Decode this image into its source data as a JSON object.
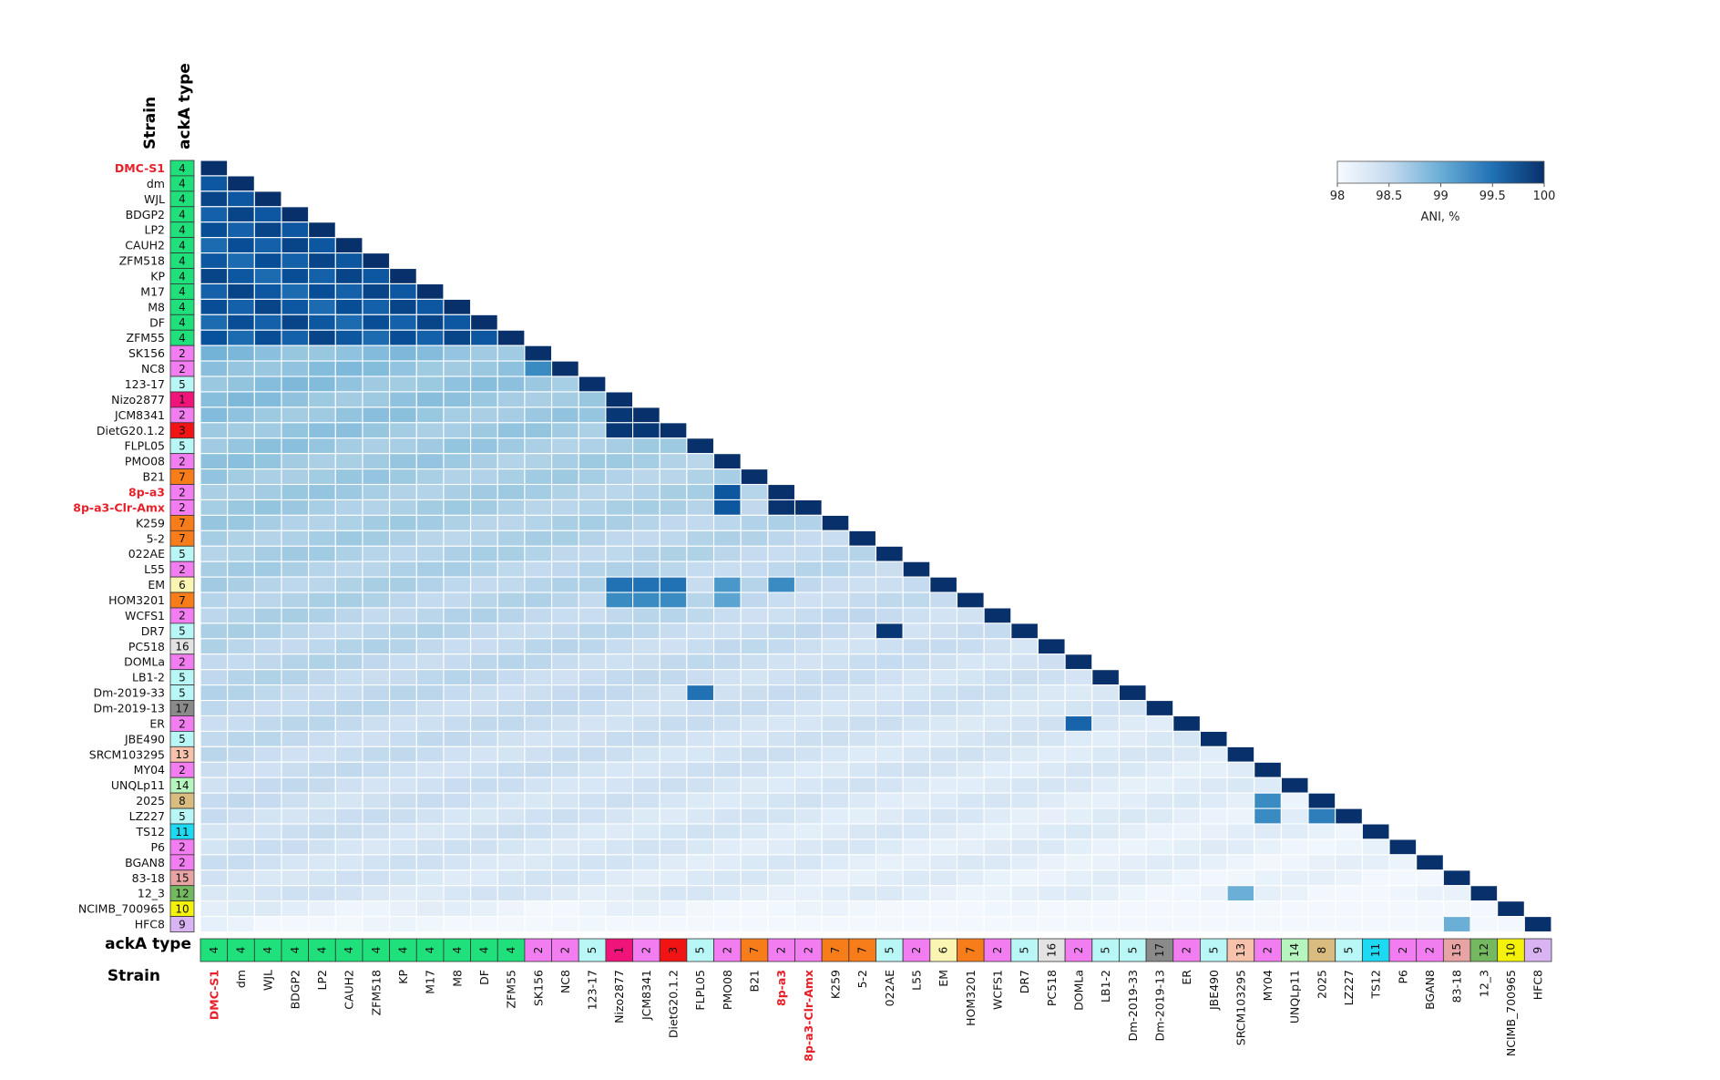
{
  "chart_data": {
    "type": "heatmap",
    "title": "",
    "row_header": "Strain",
    "type_header": "ackA type",
    "bottom_type_header": "ackA type",
    "bottom_strain_header": "Strain",
    "highlight_color": "#e8202a",
    "strains": [
      "DMC-S1",
      "dm",
      "WJL",
      "BDGP2",
      "LP2",
      "CAUH2",
      "ZFM518",
      "KP",
      "M17",
      "M8",
      "DF",
      "ZFM55",
      "SK156",
      "NC8",
      "123-17",
      "Nizo2877",
      "JCM8341",
      "DietG20.1.2",
      "FLPL05",
      "PMO08",
      "B21",
      "8p-a3",
      "8p-a3-Clr-Amx",
      "K259",
      "5-2",
      "022AE",
      "L55",
      "EM",
      "HOM3201",
      "WCFS1",
      "DR7",
      "PC518",
      "DOMLa",
      "LB1-2",
      "Dm-2019-33",
      "Dm-2019-13",
      "ER",
      "JBE490",
      "SRCM103295",
      "MY04",
      "UNQLp11",
      "2025",
      "LZ227",
      "TS12",
      "P6",
      "BGAN8",
      "83-18",
      "12_3",
      "NCIMB_700965",
      "HFC8"
    ],
    "acka_types": [
      "4",
      "4",
      "4",
      "4",
      "4",
      "4",
      "4",
      "4",
      "4",
      "4",
      "4",
      "4",
      "2",
      "2",
      "5",
      "1",
      "2",
      "3",
      "5",
      "2",
      "7",
      "2",
      "2",
      "7",
      "7",
      "5",
      "2",
      "6",
      "7",
      "2",
      "5",
      "16",
      "2",
      "5",
      "5",
      "17",
      "2",
      "5",
      "13",
      "2",
      "14",
      "8",
      "5",
      "11",
      "2",
      "2",
      "15",
      "12",
      "10",
      "9"
    ],
    "highlighted_strains": [
      "DMC-S1",
      "8p-a3",
      "8p-a3-Clr-Amx"
    ],
    "type_colors": {
      "1": "#f0147a",
      "2": "#f27df0",
      "3": "#f21414",
      "4": "#1fe07a",
      "5": "#b8f7f5",
      "6": "#fbf5b4",
      "7": "#f77d1a",
      "8": "#d8bc80",
      "9": "#d9b3f2",
      "10": "#f4f20a",
      "11": "#1ed9f2",
      "12": "#74b960",
      "13": "#f7c2ac",
      "14": "#b6f5bd",
      "15": "#e8a4a4",
      "16": "#e3e3e3",
      "17": "#8a8a8a"
    },
    "colorbar": {
      "label": "ANI, %",
      "ticks": [
        98,
        98.5,
        99,
        99.5,
        100
      ],
      "range": [
        98,
        100
      ],
      "color_low": "#f7fbff",
      "color_high": "#08306b"
    },
    "ani_model": {
      "diagonal": 100,
      "same_group_pairs_ani": 99.9,
      "high_similarity_pairs": [
        [
          "DMC-S1",
          "ZFM55",
          99.75
        ],
        [
          "SK156",
          "NC8",
          99.3
        ],
        [
          "Nizo2877",
          "JCM8341",
          99.95
        ],
        [
          "Nizo2877",
          "DietG20.1.2",
          99.95
        ],
        [
          "JCM8341",
          "DietG20.1.2",
          99.95
        ],
        [
          "8p-a3",
          "8p-a3-Clr-Amx",
          99.98
        ],
        [
          "PMO08",
          "8p-a3",
          99.7
        ],
        [
          "PMO08",
          "8p-a3-Clr-Amx",
          99.7
        ],
        [
          "022AE",
          "DR7",
          99.95
        ],
        [
          "FLPL05",
          "Dm-2019-33",
          99.5
        ],
        [
          "DOMLa",
          "ER",
          99.6
        ],
        [
          "MY04",
          "2025",
          99.3
        ],
        [
          "2025",
          "LZ227",
          99.4
        ],
        [
          "MY04",
          "LZ227",
          99.3
        ],
        [
          "SRCM103295",
          "12_3",
          99.0
        ],
        [
          "83-18",
          "HFC8",
          99.0
        ],
        [
          "EM",
          "Nizo2877",
          99.5
        ],
        [
          "EM",
          "JCM8341",
          99.5
        ],
        [
          "EM",
          "DietG20.1.2",
          99.5
        ],
        [
          "HOM3201",
          "Nizo2877",
          99.3
        ],
        [
          "HOM3201",
          "JCM8341",
          99.3
        ],
        [
          "HOM3201",
          "DietG20.1.2",
          99.3
        ],
        [
          "EM",
          "8p-a3",
          99.3
        ],
        [
          "EM",
          "PMO08",
          99.2
        ],
        [
          "HOM3201",
          "PMO08",
          99.1
        ]
      ]
    }
  }
}
